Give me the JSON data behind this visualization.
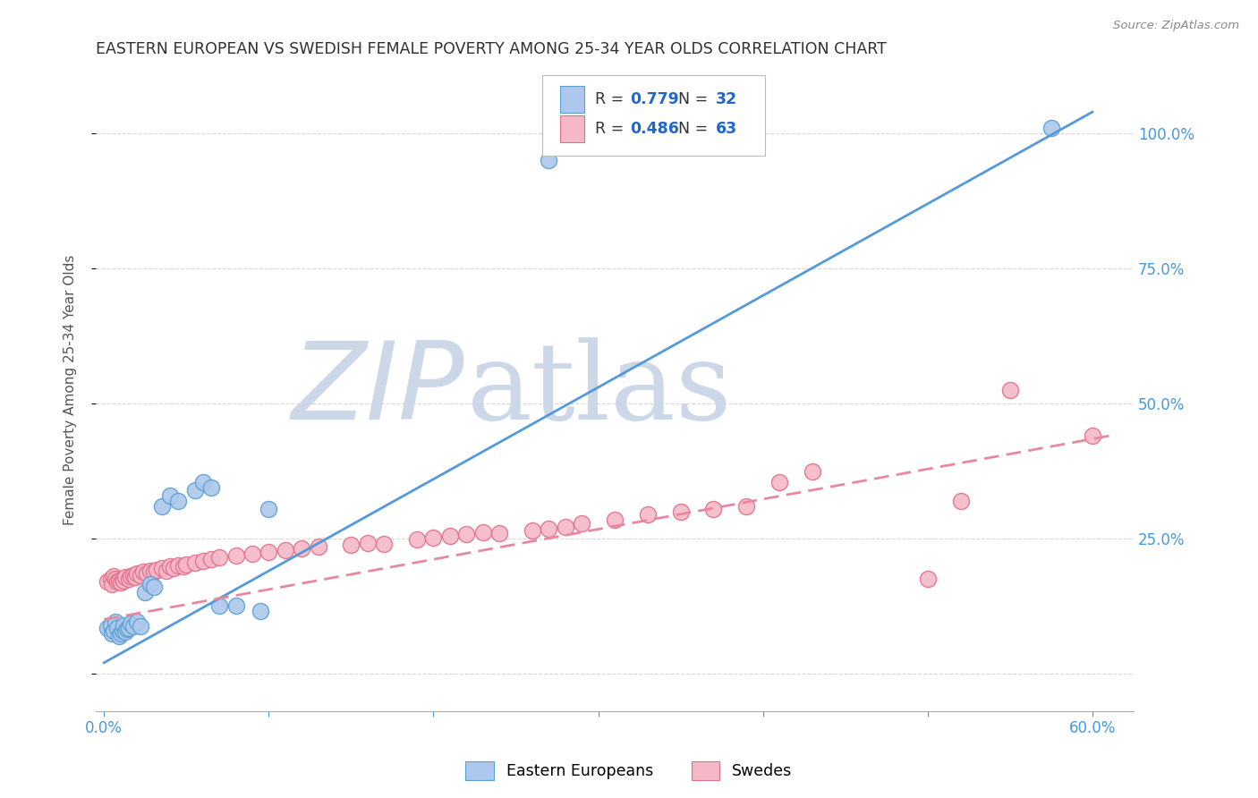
{
  "title": "EASTERN EUROPEAN VS SWEDISH FEMALE POVERTY AMONG 25-34 YEAR OLDS CORRELATION CHART",
  "source": "Source: ZipAtlas.com",
  "ylabel": "Female Poverty Among 25-34 Year Olds",
  "x_tick_positions": [
    0.0,
    0.1,
    0.2,
    0.3,
    0.4,
    0.5,
    0.6
  ],
  "x_tick_labels": [
    "0.0%",
    "",
    "",
    "",
    "",
    "",
    "60.0%"
  ],
  "y_ticks": [
    0.0,
    0.25,
    0.5,
    0.75,
    1.0
  ],
  "y_tick_labels_right": [
    "",
    "25.0%",
    "50.0%",
    "75.0%",
    "100.0%"
  ],
  "xlim": [
    -0.005,
    0.625
  ],
  "ylim": [
    -0.07,
    1.12
  ],
  "eastern_R": 0.779,
  "eastern_N": 32,
  "swedish_R": 0.486,
  "swedish_N": 63,
  "eastern_color": "#adc8ec",
  "eastern_edge_color": "#5a9fd4",
  "swedish_color": "#f4b8c8",
  "swedish_edge_color": "#e0708a",
  "eastern_line_color": "#5599dd",
  "swedish_line_color": "#e888a0",
  "eastern_line_x0": 0.0,
  "eastern_line_y0": 0.02,
  "eastern_line_x1": 0.6,
  "eastern_line_y1": 1.04,
  "swedish_line_x0": 0.0,
  "swedish_line_y0": 0.1,
  "swedish_line_x1": 0.61,
  "swedish_line_y1": 0.44,
  "eastern_scatter_x": [
    0.002,
    0.004,
    0.005,
    0.006,
    0.007,
    0.008,
    0.009,
    0.01,
    0.011,
    0.012,
    0.013,
    0.014,
    0.015,
    0.016,
    0.018,
    0.02,
    0.022,
    0.025,
    0.028,
    0.03,
    0.035,
    0.04,
    0.045,
    0.055,
    0.06,
    0.065,
    0.07,
    0.08,
    0.095,
    0.1,
    0.27,
    0.575
  ],
  "eastern_scatter_y": [
    0.085,
    0.09,
    0.075,
    0.08,
    0.095,
    0.085,
    0.07,
    0.075,
    0.08,
    0.09,
    0.078,
    0.082,
    0.085,
    0.092,
    0.088,
    0.095,
    0.088,
    0.15,
    0.165,
    0.16,
    0.31,
    0.33,
    0.32,
    0.34,
    0.355,
    0.345,
    0.125,
    0.125,
    0.115,
    0.305,
    0.95,
    1.01
  ],
  "swedish_scatter_x": [
    0.002,
    0.004,
    0.005,
    0.006,
    0.007,
    0.008,
    0.009,
    0.01,
    0.011,
    0.012,
    0.013,
    0.015,
    0.016,
    0.018,
    0.019,
    0.02,
    0.022,
    0.024,
    0.026,
    0.028,
    0.03,
    0.032,
    0.035,
    0.038,
    0.04,
    0.042,
    0.045,
    0.048,
    0.05,
    0.055,
    0.06,
    0.065,
    0.07,
    0.08,
    0.09,
    0.1,
    0.11,
    0.12,
    0.13,
    0.15,
    0.16,
    0.17,
    0.19,
    0.2,
    0.21,
    0.22,
    0.23,
    0.24,
    0.26,
    0.27,
    0.28,
    0.29,
    0.31,
    0.33,
    0.35,
    0.37,
    0.39,
    0.41,
    0.43,
    0.5,
    0.52,
    0.55,
    0.6
  ],
  "swedish_scatter_y": [
    0.17,
    0.175,
    0.165,
    0.18,
    0.175,
    0.17,
    0.172,
    0.168,
    0.175,
    0.172,
    0.178,
    0.175,
    0.18,
    0.182,
    0.178,
    0.185,
    0.182,
    0.188,
    0.185,
    0.19,
    0.188,
    0.192,
    0.195,
    0.19,
    0.198,
    0.195,
    0.2,
    0.198,
    0.202,
    0.205,
    0.208,
    0.212,
    0.215,
    0.218,
    0.222,
    0.225,
    0.228,
    0.232,
    0.235,
    0.238,
    0.242,
    0.24,
    0.248,
    0.252,
    0.255,
    0.258,
    0.262,
    0.26,
    0.265,
    0.268,
    0.272,
    0.278,
    0.285,
    0.295,
    0.3,
    0.305,
    0.31,
    0.355,
    0.375,
    0.175,
    0.32,
    0.525,
    0.44
  ],
  "background_color": "#ffffff",
  "grid_color": "#d8d8d8",
  "title_color": "#303030",
  "axis_label_color": "#555555",
  "tick_color": "#4499dd",
  "legend_value_color": "#2266cc",
  "watermark_zip_color": "#ccd8e8",
  "watermark_atlas_color": "#ccd8e8"
}
